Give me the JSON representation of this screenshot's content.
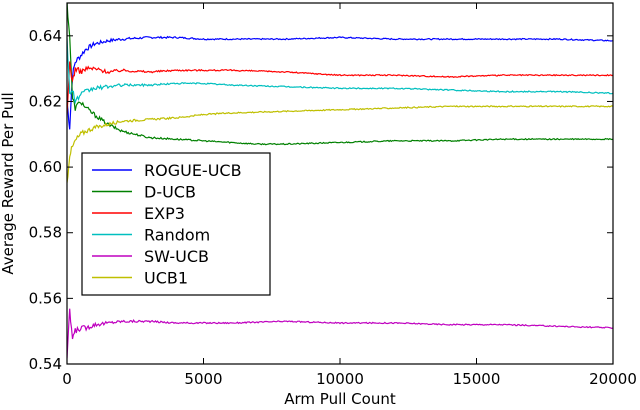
{
  "chart_data": {
    "type": "line",
    "title": "",
    "xlabel": "Arm Pull Count",
    "ylabel": "Average Reward Per Pull",
    "xlim": [
      0,
      20000
    ],
    "ylim": [
      0.54,
      0.65
    ],
    "x_ticks": [
      0,
      5000,
      10000,
      15000,
      20000
    ],
    "x_tick_labels": [
      "0",
      "5000",
      "10000",
      "15000",
      "20000"
    ],
    "y_ticks": [
      0.54,
      0.56,
      0.58,
      0.6,
      0.62,
      0.64
    ],
    "y_tick_labels": [
      "0.54",
      "0.56",
      "0.58",
      "0.60",
      "0.62",
      "0.64"
    ],
    "grid": false,
    "legend_position": "center-left",
    "series": [
      {
        "name": "ROGUE-UCB",
        "color": "#0000ff",
        "x": [
          0,
          100,
          200,
          300,
          500,
          700,
          1000,
          1500,
          2000,
          3000,
          4000,
          5000,
          6000,
          8000,
          10000,
          12000,
          14000,
          16000,
          18000,
          20000
        ],
        "y": [
          0.62,
          0.612,
          0.628,
          0.632,
          0.634,
          0.636,
          0.6375,
          0.6385,
          0.639,
          0.6395,
          0.6395,
          0.639,
          0.639,
          0.639,
          0.6395,
          0.639,
          0.639,
          0.639,
          0.639,
          0.6385
        ]
      },
      {
        "name": "D-UCB",
        "color": "#008000",
        "x": [
          0,
          100,
          200,
          300,
          500,
          700,
          1000,
          1500,
          2000,
          3000,
          4000,
          5000,
          6000,
          7000,
          8000,
          10000,
          12000,
          14000,
          16000,
          18000,
          20000
        ],
        "y": [
          0.65,
          0.64,
          0.621,
          0.618,
          0.62,
          0.618,
          0.616,
          0.613,
          0.611,
          0.609,
          0.6085,
          0.608,
          0.6075,
          0.607,
          0.607,
          0.6075,
          0.608,
          0.608,
          0.6085,
          0.6085,
          0.6085
        ]
      },
      {
        "name": "EXP3",
        "color": "#ff0000",
        "x": [
          0,
          100,
          200,
          300,
          500,
          700,
          1000,
          1500,
          2000,
          3000,
          4000,
          5000,
          6000,
          8000,
          10000,
          12000,
          14000,
          16000,
          18000,
          20000
        ],
        "y": [
          0.615,
          0.632,
          0.626,
          0.63,
          0.629,
          0.63,
          0.63,
          0.629,
          0.6295,
          0.629,
          0.6295,
          0.6295,
          0.6295,
          0.629,
          0.628,
          0.628,
          0.6275,
          0.628,
          0.628,
          0.628
        ]
      },
      {
        "name": "Random",
        "color": "#00bfbf",
        "x": [
          0,
          100,
          200,
          300,
          500,
          700,
          1000,
          1500,
          2000,
          3000,
          4000,
          5000,
          6000,
          8000,
          10000,
          12000,
          14000,
          16000,
          18000,
          20000
        ],
        "y": [
          0.64,
          0.622,
          0.624,
          0.62,
          0.622,
          0.623,
          0.624,
          0.6245,
          0.625,
          0.625,
          0.6255,
          0.6255,
          0.625,
          0.6245,
          0.624,
          0.624,
          0.6235,
          0.623,
          0.623,
          0.6225
        ]
      },
      {
        "name": "SW-UCB",
        "color": "#bf00bf",
        "x": [
          0,
          100,
          200,
          300,
          500,
          700,
          1000,
          1500,
          2000,
          3000,
          4000,
          5000,
          6000,
          8000,
          10000,
          12000,
          14000,
          16000,
          18000,
          20000
        ],
        "y": [
          0.542,
          0.556,
          0.548,
          0.55,
          0.551,
          0.551,
          0.552,
          0.5525,
          0.553,
          0.553,
          0.5525,
          0.5525,
          0.5525,
          0.553,
          0.5525,
          0.5525,
          0.552,
          0.552,
          0.5515,
          0.551
        ]
      },
      {
        "name": "UCB1",
        "color": "#bfbf00",
        "x": [
          0,
          100,
          200,
          300,
          500,
          700,
          1000,
          1500,
          2000,
          3000,
          4000,
          5000,
          6000,
          8000,
          10000,
          12000,
          14000,
          16000,
          18000,
          20000
        ],
        "y": [
          0.595,
          0.604,
          0.606,
          0.608,
          0.61,
          0.611,
          0.612,
          0.613,
          0.614,
          0.6145,
          0.615,
          0.616,
          0.6165,
          0.617,
          0.6175,
          0.618,
          0.6185,
          0.6185,
          0.6185,
          0.6185
        ]
      }
    ]
  }
}
